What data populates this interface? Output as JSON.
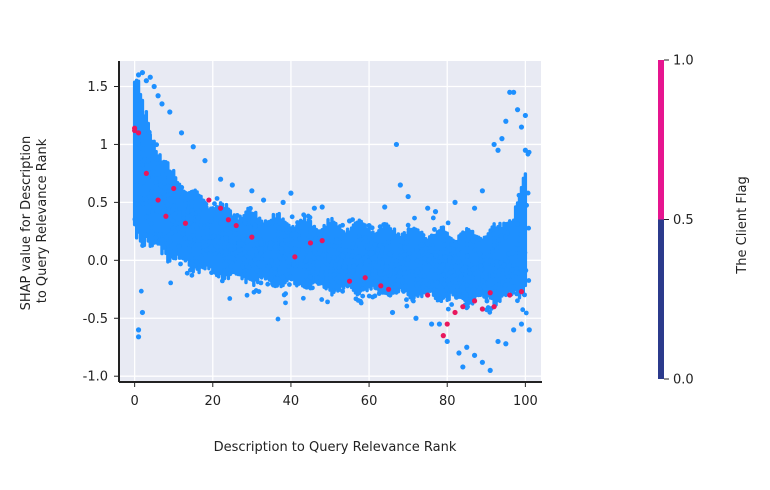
{
  "chart_data": {
    "type": "scatter",
    "xlabel": "Description to Query Relevance Rank",
    "ylabel_lines": [
      "SHAP value for Description",
      "to Query Relevance Rank"
    ],
    "xlim": [
      -4,
      104
    ],
    "ylim": [
      -1.05,
      1.72
    ],
    "x_ticks": [
      0,
      20,
      40,
      60,
      80,
      100
    ],
    "y_ticks": [
      {
        "value": 1.5,
        "label": "1.5"
      },
      {
        "value": 1.0,
        "label": "1"
      },
      {
        "value": 0.5,
        "label": "0.5"
      },
      {
        "value": 0.0,
        "label": "0.0"
      },
      {
        "value": -0.5,
        "label": "-0.5"
      },
      {
        "value": -1.0,
        "label": "-1.0"
      }
    ],
    "grid": true,
    "plot_background": "#e8eaf3",
    "color_flag_0": "#1e90ff",
    "color_flag_1": "#e8175d",
    "colorbar": {
      "title": "The Client Flag",
      "ticks": [
        {
          "value": 1.0,
          "label": "1.0"
        },
        {
          "value": 0.5,
          "label": "0.5"
        },
        {
          "value": 0.0,
          "label": "0.0"
        }
      ],
      "segments": [
        {
          "from": 0.0,
          "to": 0.5,
          "color": "#2b3a8c"
        },
        {
          "from": 0.5,
          "to": 1.0,
          "color": "#e6158f"
        }
      ]
    },
    "outliers_flag_0": [
      [
        1,
        1.6
      ],
      [
        2,
        1.62
      ],
      [
        3,
        1.55
      ],
      [
        4,
        1.58
      ],
      [
        5,
        1.5
      ],
      [
        6,
        1.42
      ],
      [
        7,
        1.35
      ],
      [
        9,
        1.28
      ],
      [
        12,
        1.1
      ],
      [
        15,
        0.98
      ],
      [
        18,
        0.86
      ],
      [
        22,
        0.7
      ],
      [
        25,
        0.65
      ],
      [
        30,
        0.6
      ],
      [
        33,
        0.52
      ],
      [
        38,
        0.5
      ],
      [
        40,
        0.58
      ],
      [
        46,
        0.45
      ],
      [
        48,
        0.46
      ],
      [
        55,
        0.34
      ],
      [
        60,
        0.3
      ],
      [
        64,
        0.46
      ],
      [
        67,
        1.0
      ],
      [
        68,
        0.65
      ],
      [
        70,
        0.55
      ],
      [
        75,
        0.45
      ],
      [
        77,
        0.42
      ],
      [
        82,
        0.5
      ],
      [
        87,
        0.45
      ],
      [
        89,
        0.6
      ],
      [
        92,
        1.0
      ],
      [
        93,
        0.95
      ],
      [
        94,
        1.05
      ],
      [
        95,
        1.2
      ],
      [
        96,
        1.45
      ],
      [
        97,
        1.45
      ],
      [
        98,
        1.3
      ],
      [
        99,
        1.15
      ],
      [
        100,
        1.25
      ],
      [
        100,
        0.95
      ],
      [
        1,
        -0.6
      ],
      [
        1,
        -0.66
      ],
      [
        2,
        -0.45
      ],
      [
        78,
        -0.55
      ],
      [
        80,
        -0.7
      ],
      [
        83,
        -0.8
      ],
      [
        84,
        -0.92
      ],
      [
        85,
        -0.75
      ],
      [
        87,
        -0.82
      ],
      [
        89,
        -0.88
      ],
      [
        91,
        -0.95
      ],
      [
        93,
        -0.7
      ],
      [
        95,
        -0.72
      ],
      [
        97,
        -0.6
      ],
      [
        99,
        -0.55
      ],
      [
        101,
        -0.6
      ],
      [
        66,
        -0.45
      ],
      [
        72,
        -0.5
      ],
      [
        76,
        -0.55
      ]
    ],
    "points_flag_1": [
      [
        0,
        1.14
      ],
      [
        0,
        1.12
      ],
      [
        1,
        1.1
      ],
      [
        3,
        0.75
      ],
      [
        6,
        0.52
      ],
      [
        8,
        0.38
      ],
      [
        10,
        0.62
      ],
      [
        13,
        0.32
      ],
      [
        19,
        0.52
      ],
      [
        22,
        0.45
      ],
      [
        24,
        0.35
      ],
      [
        26,
        0.3
      ],
      [
        30,
        0.2
      ],
      [
        41,
        0.03
      ],
      [
        45,
        0.15
      ],
      [
        48,
        0.17
      ],
      [
        55,
        -0.18
      ],
      [
        59,
        -0.15
      ],
      [
        63,
        -0.22
      ],
      [
        65,
        -0.25
      ],
      [
        75,
        -0.3
      ],
      [
        79,
        -0.65
      ],
      [
        80,
        -0.55
      ],
      [
        82,
        -0.45
      ],
      [
        84,
        -0.4
      ],
      [
        87,
        -0.35
      ],
      [
        89,
        -0.42
      ],
      [
        91,
        -0.28
      ],
      [
        92,
        -0.4
      ],
      [
        96,
        -0.3
      ],
      [
        99,
        -0.27
      ]
    ]
  }
}
